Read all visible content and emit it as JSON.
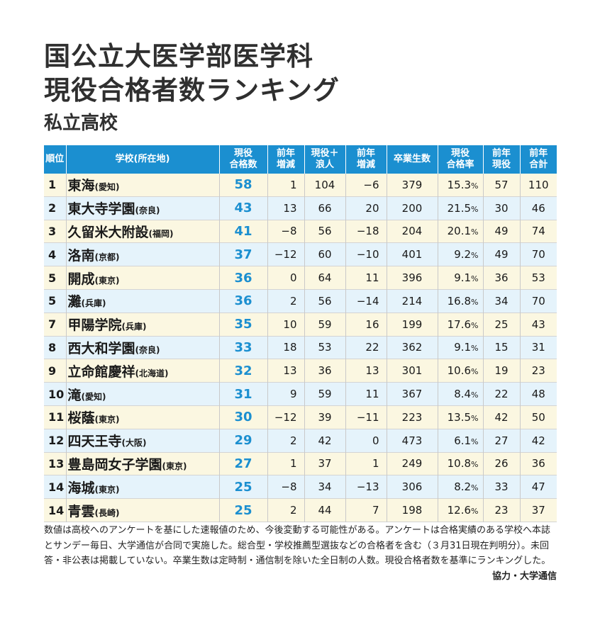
{
  "title": {
    "line1": "国公立大医学部医学科",
    "line2": "現役合格者数ランキング",
    "line3": "私立高校"
  },
  "headers": [
    [
      "順位"
    ],
    [
      "学校(所在地)"
    ],
    [
      "現役",
      "合格数"
    ],
    [
      "前年",
      "増減"
    ],
    [
      "現役＋",
      "浪人"
    ],
    [
      "前年",
      "増減"
    ],
    [
      "卒業生数"
    ],
    [
      "現役",
      "合格率"
    ],
    [
      "前年",
      "現役"
    ],
    [
      "前年",
      "合計"
    ]
  ],
  "rows": [
    {
      "rank": "1",
      "school": "東海",
      "pref": "(愛知)",
      "gen": "58",
      "diff": "1",
      "total": "104",
      "tdiff": "−6",
      "grads": "379",
      "rate": "15.3",
      "prev_gen": "57",
      "prev_total": "110"
    },
    {
      "rank": "2",
      "school": "東大寺学園",
      "pref": "(奈良)",
      "gen": "43",
      "diff": "13",
      "total": "66",
      "tdiff": "20",
      "grads": "200",
      "rate": "21.5",
      "prev_gen": "30",
      "prev_total": "46"
    },
    {
      "rank": "3",
      "school": "久留米大附設",
      "pref": "(福岡)",
      "gen": "41",
      "diff": "−8",
      "total": "56",
      "tdiff": "−18",
      "grads": "204",
      "rate": "20.1",
      "prev_gen": "49",
      "prev_total": "74"
    },
    {
      "rank": "4",
      "school": "洛南",
      "pref": "(京都)",
      "gen": "37",
      "diff": "−12",
      "total": "60",
      "tdiff": "−10",
      "grads": "401",
      "rate": "9.2",
      "prev_gen": "49",
      "prev_total": "70"
    },
    {
      "rank": "5",
      "school": "開成",
      "pref": "(東京)",
      "gen": "36",
      "diff": "0",
      "total": "64",
      "tdiff": "11",
      "grads": "396",
      "rate": "9.1",
      "prev_gen": "36",
      "prev_total": "53"
    },
    {
      "rank": "5",
      "school": "灘",
      "pref": "(兵庫)",
      "gen": "36",
      "diff": "2",
      "total": "56",
      "tdiff": "−14",
      "grads": "214",
      "rate": "16.8",
      "prev_gen": "34",
      "prev_total": "70"
    },
    {
      "rank": "7",
      "school": "甲陽学院",
      "pref": "(兵庫)",
      "gen": "35",
      "diff": "10",
      "total": "59",
      "tdiff": "16",
      "grads": "199",
      "rate": "17.6",
      "prev_gen": "25",
      "prev_total": "43"
    },
    {
      "rank": "8",
      "school": "西大和学園",
      "pref": "(奈良)",
      "gen": "33",
      "diff": "18",
      "total": "53",
      "tdiff": "22",
      "grads": "362",
      "rate": "9.1",
      "prev_gen": "15",
      "prev_total": "31"
    },
    {
      "rank": "9",
      "school": "立命館慶祥",
      "pref": "(北海道)",
      "gen": "32",
      "diff": "13",
      "total": "36",
      "tdiff": "13",
      "grads": "301",
      "rate": "10.6",
      "prev_gen": "19",
      "prev_total": "23"
    },
    {
      "rank": "10",
      "school": "滝",
      "pref": "(愛知)",
      "gen": "31",
      "diff": "9",
      "total": "59",
      "tdiff": "11",
      "grads": "367",
      "rate": "8.4",
      "prev_gen": "22",
      "prev_total": "48"
    },
    {
      "rank": "11",
      "school": "桜蔭",
      "pref": "(東京)",
      "gen": "30",
      "diff": "−12",
      "total": "39",
      "tdiff": "−11",
      "grads": "223",
      "rate": "13.5",
      "prev_gen": "42",
      "prev_total": "50"
    },
    {
      "rank": "12",
      "school": "四天王寺",
      "pref": "(大阪)",
      "gen": "29",
      "diff": "2",
      "total": "42",
      "tdiff": "0",
      "grads": "473",
      "rate": "6.1",
      "prev_gen": "27",
      "prev_total": "42"
    },
    {
      "rank": "13",
      "school": "豊島岡女子学園",
      "pref": "(東京)",
      "gen": "27",
      "diff": "1",
      "total": "37",
      "tdiff": "1",
      "grads": "249",
      "rate": "10.8",
      "prev_gen": "26",
      "prev_total": "36"
    },
    {
      "rank": "14",
      "school": "海城",
      "pref": "(東京)",
      "gen": "25",
      "diff": "−8",
      "total": "34",
      "tdiff": "−13",
      "grads": "306",
      "rate": "8.2",
      "prev_gen": "33",
      "prev_total": "47"
    },
    {
      "rank": "14",
      "school": "青雲",
      "pref": "(長崎)",
      "gen": "25",
      "diff": "2",
      "total": "44",
      "tdiff": "7",
      "grads": "198",
      "rate": "12.6",
      "prev_gen": "23",
      "prev_total": "37"
    }
  ],
  "percent_sign": "%",
  "footnote": "数値は高校へのアンケートを基にした速報値のため、今後変動する可能性がある。アンケートは合格実績のある学校へ本誌とサンデー毎日、大学通信が合同で実施した。総合型・学校推薦型選抜などの合格者を含む（３月31日現在判明分）。未回答・非公表は掲載していない。卒業生数は定時制・通信制を除いた全日制の人数。現役合格者数を基準にランキングした。",
  "credit": "協力・大学通信",
  "colors": {
    "header_bg": "#1b8fd0",
    "highlight": "#1b8fd0",
    "row_odd": "#fbf7e1",
    "row_even": "#e5f3fb"
  }
}
